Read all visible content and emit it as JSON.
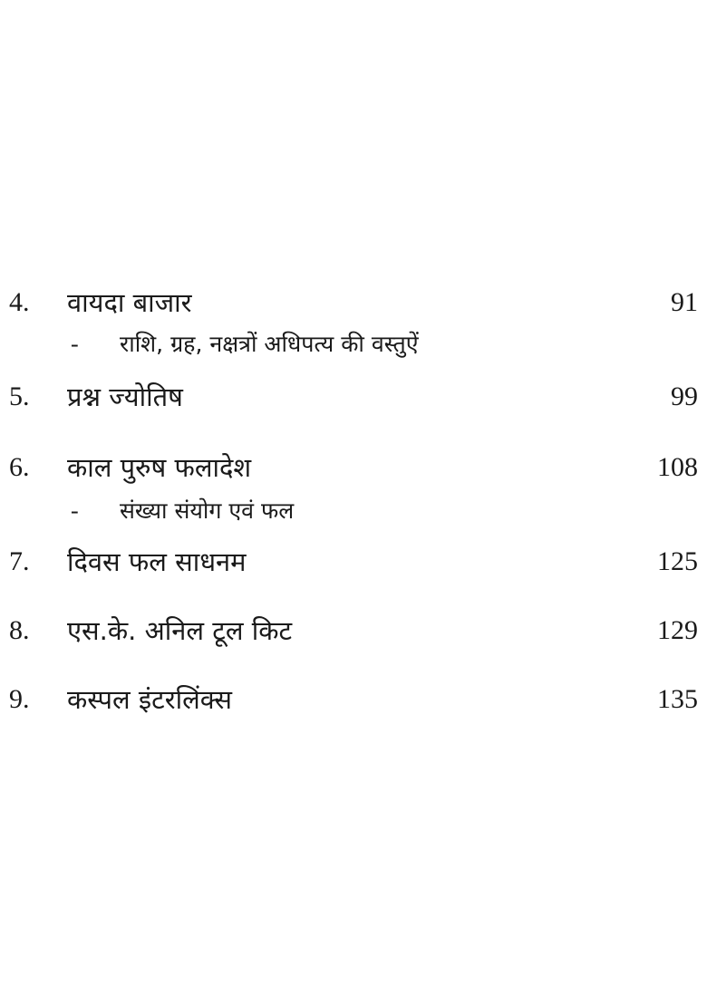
{
  "toc": {
    "entries": [
      {
        "number": "4.",
        "title": "वायदा बाजार",
        "page": "91",
        "sub": "राशि, ग्रह, नक्षत्रों अधिपत्य की वस्तुऐं"
      },
      {
        "number": "5.",
        "title": "प्रश्न ज्योतिष",
        "page": "99"
      },
      {
        "number": "6.",
        "title": "काल पुरुष फलादेश",
        "page": "108",
        "sub": "संख्या संयोग एवं फल"
      },
      {
        "number": "7.",
        "title": "दिवस फल साधनम",
        "page": "125"
      },
      {
        "number": "8.",
        "title": "एस.के. अनिल टूल किट",
        "page": "129"
      },
      {
        "number": "9.",
        "title": "कस्पल इंटरलिंक्स",
        "page": "135"
      }
    ],
    "sub_marker": "-"
  }
}
